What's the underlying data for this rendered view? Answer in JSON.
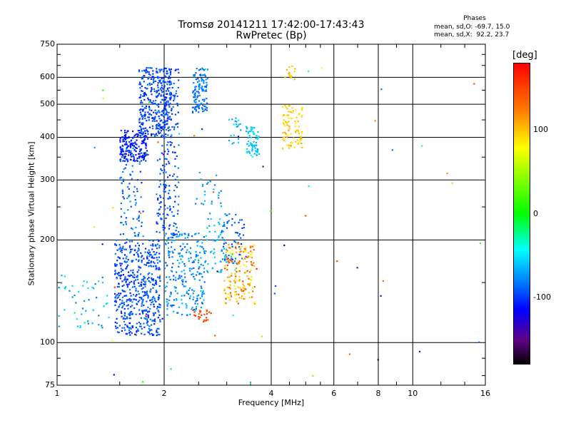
{
  "chart_data": {
    "type": "scatter",
    "title": "Tromsø 20141211 17:42:00-17:43:43",
    "subtitle": "RwPretec (Bp)",
    "xlabel": "Frequency [MHz]",
    "ylabel": "Stationary phase Virtual Height [km]",
    "x_scale": "log",
    "y_scale": "log",
    "xlim": [
      1,
      16
    ],
    "ylim": [
      75,
      750
    ],
    "x_ticks": [
      1,
      2,
      4,
      6,
      8,
      10,
      16
    ],
    "y_ticks": [
      75,
      100,
      200,
      300,
      400,
      500,
      600,
      750
    ],
    "grid": true,
    "colorbar": {
      "label": "[deg]",
      "range": [
        -180,
        180
      ],
      "ticks": [
        100,
        0,
        -100
      ]
    },
    "stats": {
      "heading": "Phases",
      "o_mode": "mean, sd,O: -69.7, 15.0",
      "x_mode": "mean, sd,X:  92.2, 23.7"
    },
    "clusters": [
      {
        "x": [
          1.45,
          1.95
        ],
        "y": [
          105,
          200
        ],
        "n": 520,
        "phase": [
          -115,
          -80
        ]
      },
      {
        "x": [
          1.5,
          1.75
        ],
        "y": [
          200,
          380
        ],
        "n": 90,
        "phase": [
          -105,
          -70
        ]
      },
      {
        "x": [
          1.5,
          1.8
        ],
        "y": [
          340,
          420
        ],
        "n": 170,
        "phase": [
          -125,
          -100
        ]
      },
      {
        "x": [
          1.7,
          2.1
        ],
        "y": [
          400,
          640
        ],
        "n": 330,
        "phase": [
          -115,
          -85
        ]
      },
      {
        "x": [
          1.9,
          2.2
        ],
        "y": [
          200,
          640
        ],
        "n": 220,
        "phase": [
          -110,
          -80
        ]
      },
      {
        "x": [
          2.0,
          2.6
        ],
        "y": [
          120,
          210
        ],
        "n": 230,
        "phase": [
          -95,
          -60
        ]
      },
      {
        "x": [
          2.4,
          2.65
        ],
        "y": [
          470,
          640
        ],
        "n": 120,
        "phase": [
          -95,
          -70
        ]
      },
      {
        "x": [
          2.45,
          2.9
        ],
        "y": [
          250,
          320
        ],
        "n": 25,
        "phase": [
          -85,
          -60
        ]
      },
      {
        "x": [
          2.6,
          3.0
        ],
        "y": [
          160,
          240
        ],
        "n": 60,
        "phase": [
          -80,
          -50
        ]
      },
      {
        "x": [
          2.9,
          3.4
        ],
        "y": [
          170,
          240
        ],
        "n": 60,
        "phase": [
          -110,
          -80
        ]
      },
      {
        "x": [
          2.95,
          3.6
        ],
        "y": [
          130,
          195
        ],
        "n": 160,
        "phase": [
          70,
          150
        ]
      },
      {
        "x": [
          2.4,
          2.75
        ],
        "y": [
          115,
          125
        ],
        "n": 25,
        "phase": [
          135,
          165
        ]
      },
      {
        "x": [
          3.4,
          3.7
        ],
        "y": [
          350,
          430
        ],
        "n": 70,
        "phase": [
          -70,
          -45
        ]
      },
      {
        "x": [
          3.0,
          3.3
        ],
        "y": [
          380,
          470
        ],
        "n": 20,
        "phase": [
          -75,
          -50
        ]
      },
      {
        "x": [
          4.3,
          4.9
        ],
        "y": [
          370,
          500
        ],
        "n": 90,
        "phase": [
          80,
          110
        ]
      },
      {
        "x": [
          4.3,
          4.7
        ],
        "y": [
          590,
          650
        ],
        "n": 15,
        "phase": [
          90,
          105
        ]
      },
      {
        "x": [
          1.0,
          1.4
        ],
        "y": [
          110,
          160
        ],
        "n": 50,
        "phase": [
          -85,
          -50
        ]
      },
      {
        "x": [
          1.0,
          16.0
        ],
        "y": [
          75,
          650
        ],
        "n": 70,
        "phase": [
          -170,
          170
        ]
      }
    ]
  }
}
